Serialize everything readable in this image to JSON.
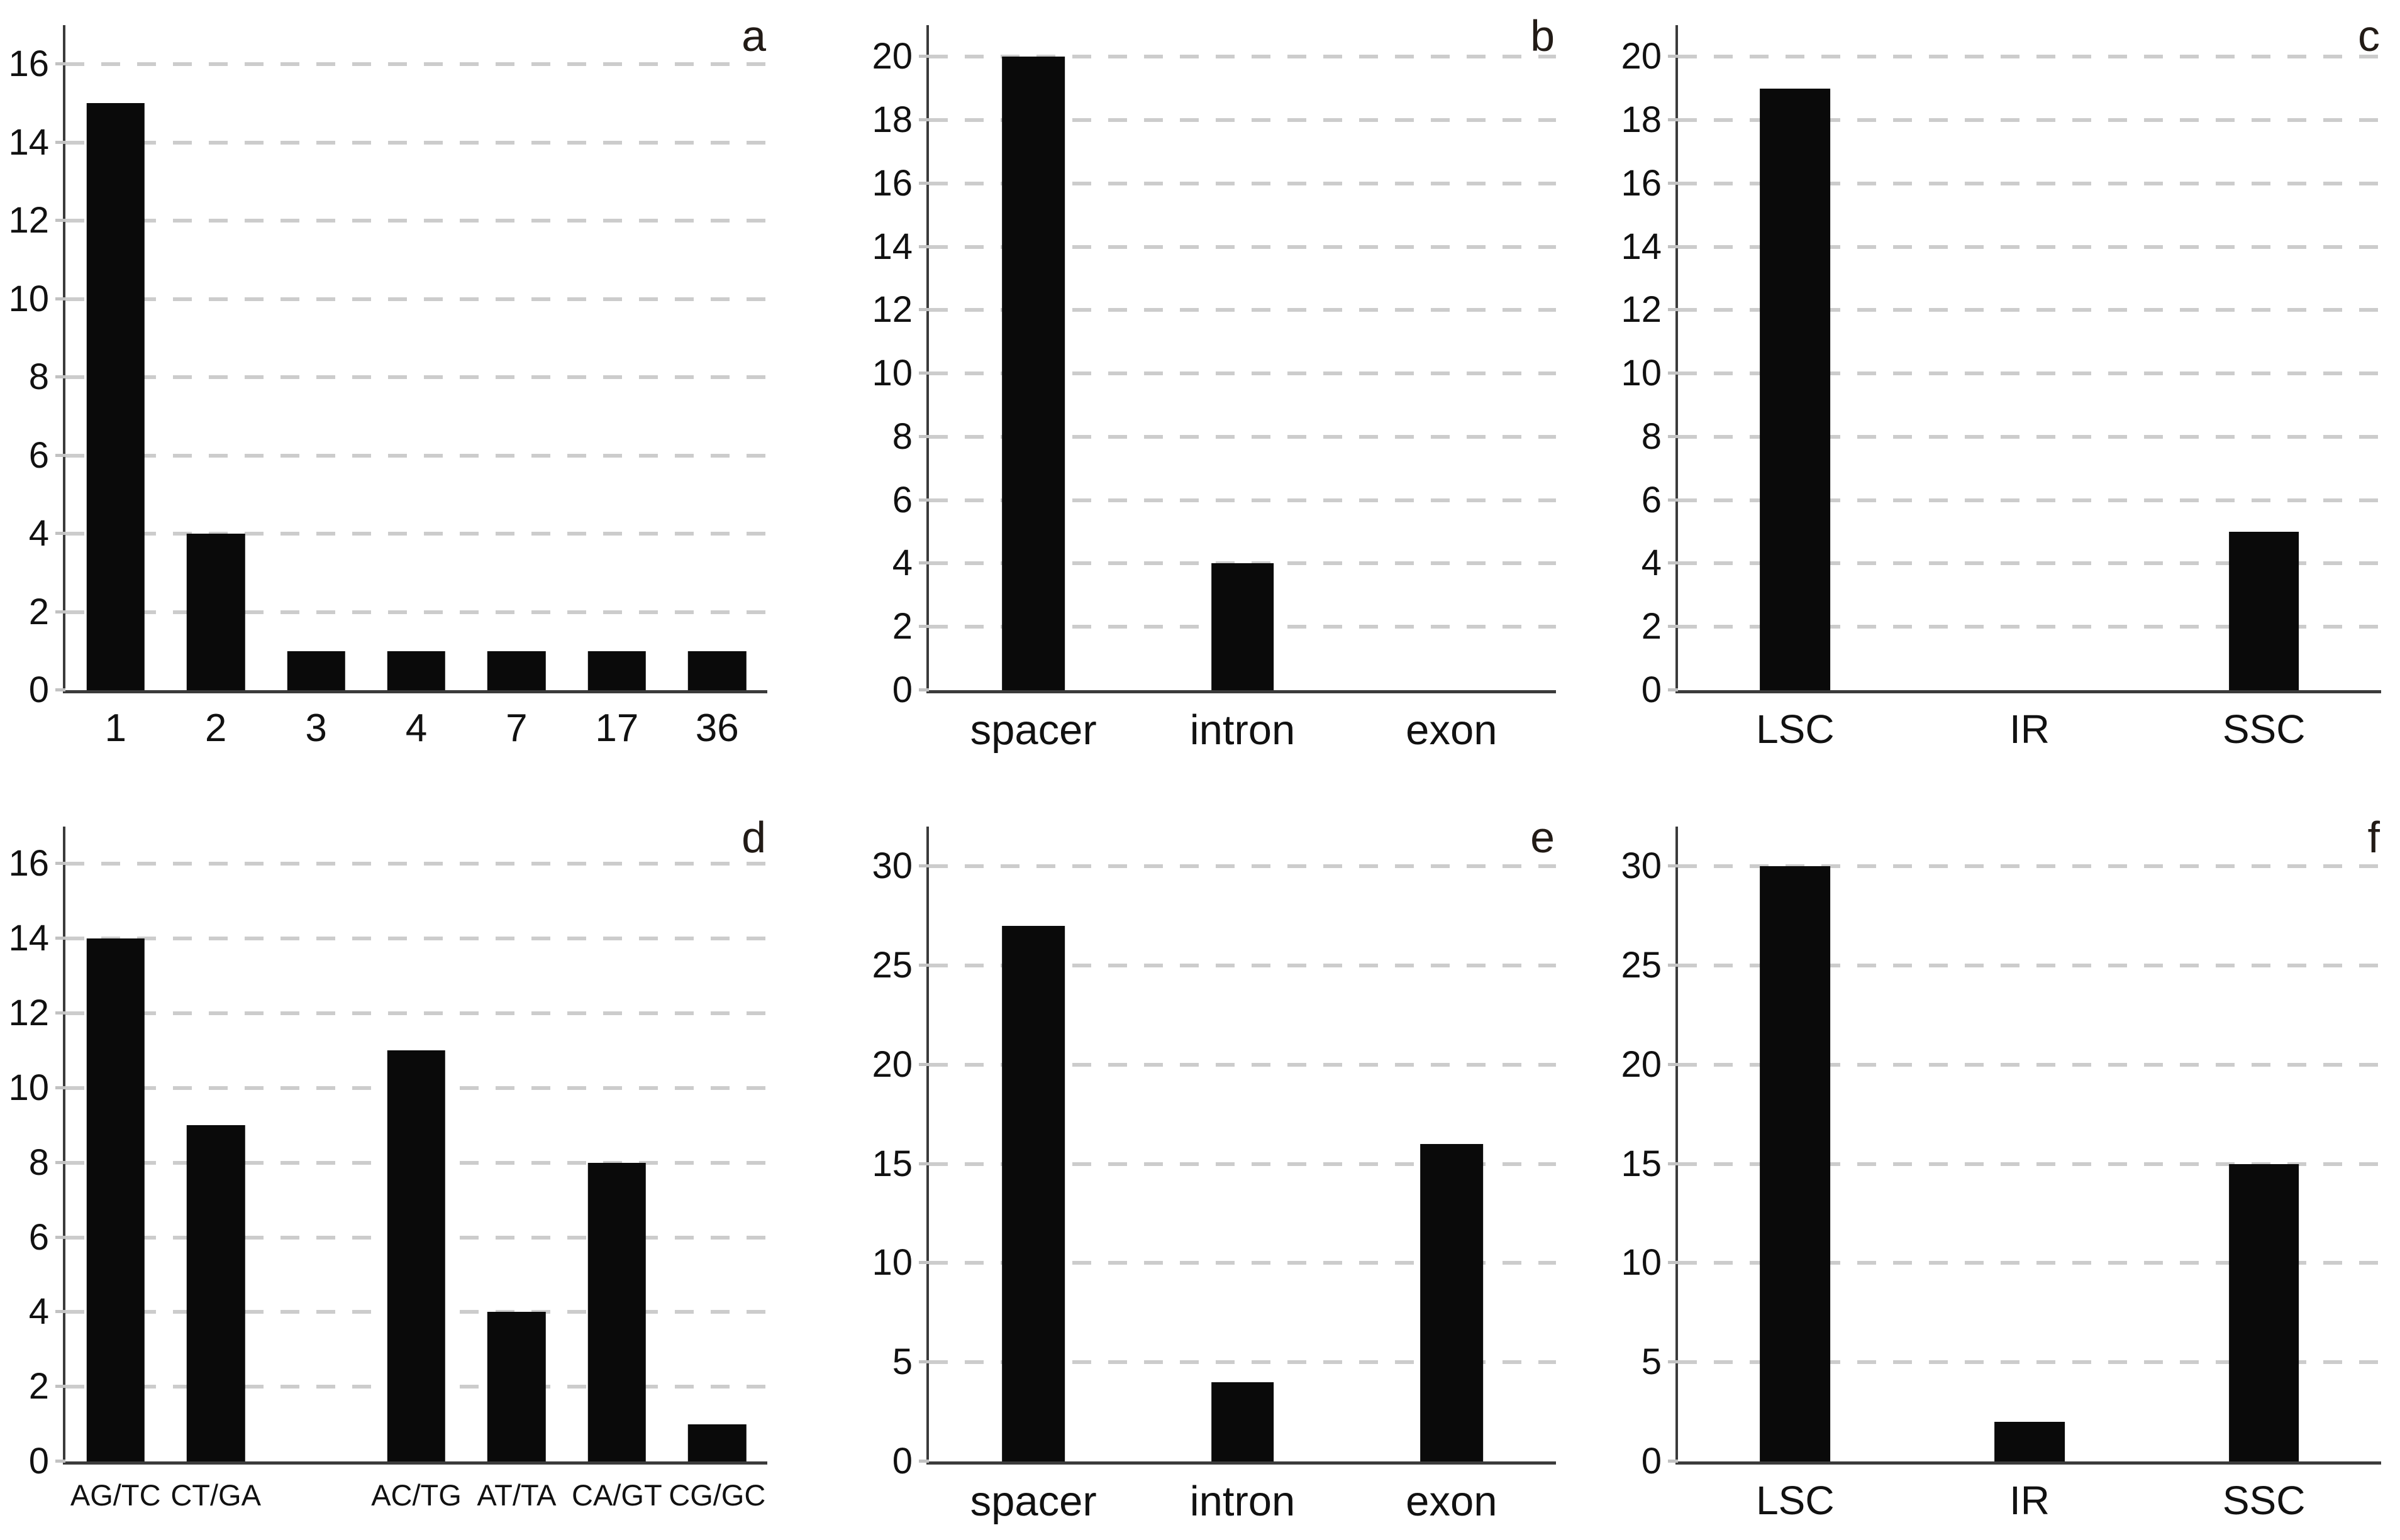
{
  "figure": {
    "description": "Six-panel bar chart figure (SSR statistics), panels labeled a-f",
    "background": "#ffffff"
  },
  "style": {
    "bar_color": "#0a0a0a",
    "axis_color": "#3b3b3b",
    "gridline_color": "#cccccc",
    "tick_color": "#c2c2c2",
    "text_color": "#111111",
    "panel_letter_color": "#221b16"
  },
  "chart_data": [
    {
      "panel": "a",
      "type": "bar",
      "categories": [
        "1",
        "2",
        "3",
        "4",
        "7",
        "17",
        "36"
      ],
      "values": [
        15,
        4,
        1,
        1,
        1,
        1,
        1
      ],
      "yticks": [
        0,
        2,
        4,
        6,
        8,
        10,
        12,
        14,
        16
      ],
      "ylim": [
        0,
        17
      ],
      "grid": "horizontal-dashed",
      "legend": "none"
    },
    {
      "panel": "b",
      "type": "bar",
      "categories": [
        "spacer",
        "intron",
        "exon"
      ],
      "values": [
        20,
        4,
        0
      ],
      "yticks": [
        0,
        2,
        4,
        6,
        8,
        10,
        12,
        14,
        16,
        18,
        20
      ],
      "ylim": [
        0,
        21
      ],
      "grid": "horizontal-dashed",
      "legend": "none"
    },
    {
      "panel": "c",
      "type": "bar",
      "categories": [
        "LSC",
        "IR",
        "SSC"
      ],
      "values": [
        19,
        0,
        5
      ],
      "yticks": [
        0,
        2,
        4,
        6,
        8,
        10,
        12,
        14,
        16,
        18,
        20
      ],
      "ylim": [
        0,
        21
      ],
      "grid": "horizontal-dashed",
      "legend": "none"
    },
    {
      "panel": "d",
      "type": "bar",
      "categories": [
        "AG/TC",
        "CT/GA",
        "",
        "AC/TG",
        "AT/TA",
        "CA/GT",
        "CG/GC"
      ],
      "values": [
        14,
        9,
        0,
        11,
        4,
        8,
        1
      ],
      "yticks": [
        0,
        2,
        4,
        6,
        8,
        10,
        12,
        14,
        16
      ],
      "ylim": [
        0,
        17
      ],
      "grid": "horizontal-dashed",
      "legend": "none"
    },
    {
      "panel": "e",
      "type": "bar",
      "categories": [
        "spacer",
        "intron",
        "exon"
      ],
      "values": [
        27,
        4,
        16
      ],
      "yticks": [
        0,
        5,
        10,
        15,
        20,
        25,
        30
      ],
      "ylim": [
        0,
        32
      ],
      "grid": "horizontal-dashed",
      "legend": "none"
    },
    {
      "panel": "f",
      "type": "bar",
      "categories": [
        "LSC",
        "IR",
        "SSC"
      ],
      "values": [
        30,
        2,
        15
      ],
      "yticks": [
        0,
        5,
        10,
        15,
        20,
        25,
        30
      ],
      "ylim": [
        0,
        32
      ],
      "grid": "horizontal-dashed",
      "legend": "none"
    }
  ]
}
